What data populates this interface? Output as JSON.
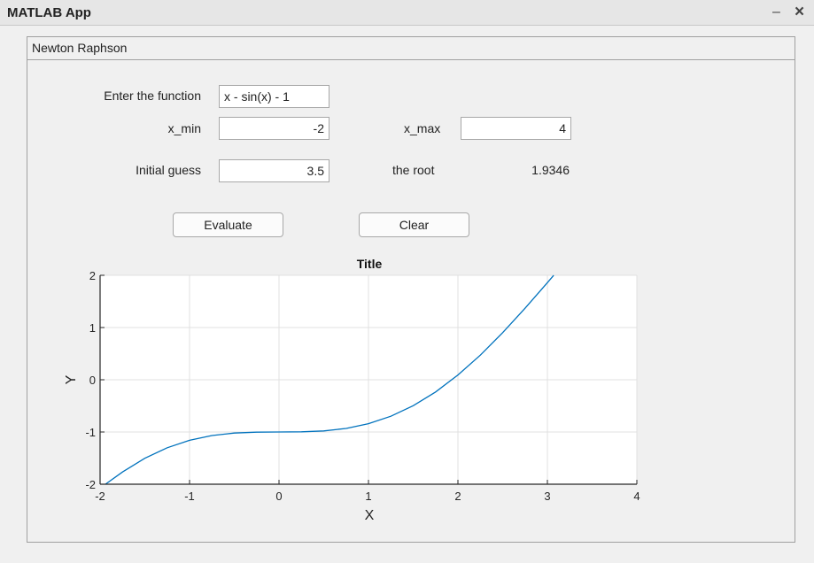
{
  "window": {
    "title": "MATLAB App",
    "minimize_glyph": "–",
    "close_glyph": "×"
  },
  "panel": {
    "title": "Newton Raphson"
  },
  "form": {
    "function_label": "Enter the function",
    "function_value": "x - sin(x) - 1",
    "xmin_label": "x_min",
    "xmin_value": "-2",
    "xmax_label": "x_max",
    "xmax_value": "4",
    "guess_label": "Initial guess",
    "guess_value": "3.5",
    "root_label": "the root",
    "root_value": "1.9346"
  },
  "buttons": {
    "evaluate_label": "Evaluate",
    "clear_label": "Clear"
  },
  "chart_data": {
    "type": "line",
    "title": "Title",
    "xlabel": "X",
    "ylabel": "Y",
    "xlim": [
      -2,
      4
    ],
    "ylim": [
      -2,
      2
    ],
    "xticks": [
      "-2",
      "-1",
      "0",
      "1",
      "2",
      "3",
      "4"
    ],
    "yticks": [
      "-2",
      "-1",
      "0",
      "1",
      "2"
    ],
    "grid": true,
    "series": [
      {
        "color": "#0072bd",
        "x": [
          -1.94,
          -1.75,
          -1.5,
          -1.25,
          -1.0,
          -0.75,
          -0.5,
          -0.25,
          0.0,
          0.25,
          0.5,
          0.75,
          1.0,
          1.25,
          1.5,
          1.75,
          2.0,
          2.25,
          2.5,
          2.75,
          3.0,
          3.07
        ],
        "y": [
          -2.0,
          -1.766,
          -1.503,
          -1.301,
          -1.159,
          -1.068,
          -1.021,
          -1.003,
          -1.0,
          -0.997,
          -0.979,
          -0.932,
          -0.841,
          -0.699,
          -0.497,
          -0.234,
          0.091,
          0.472,
          0.902,
          1.369,
          1.859,
          1.998
        ]
      }
    ]
  }
}
